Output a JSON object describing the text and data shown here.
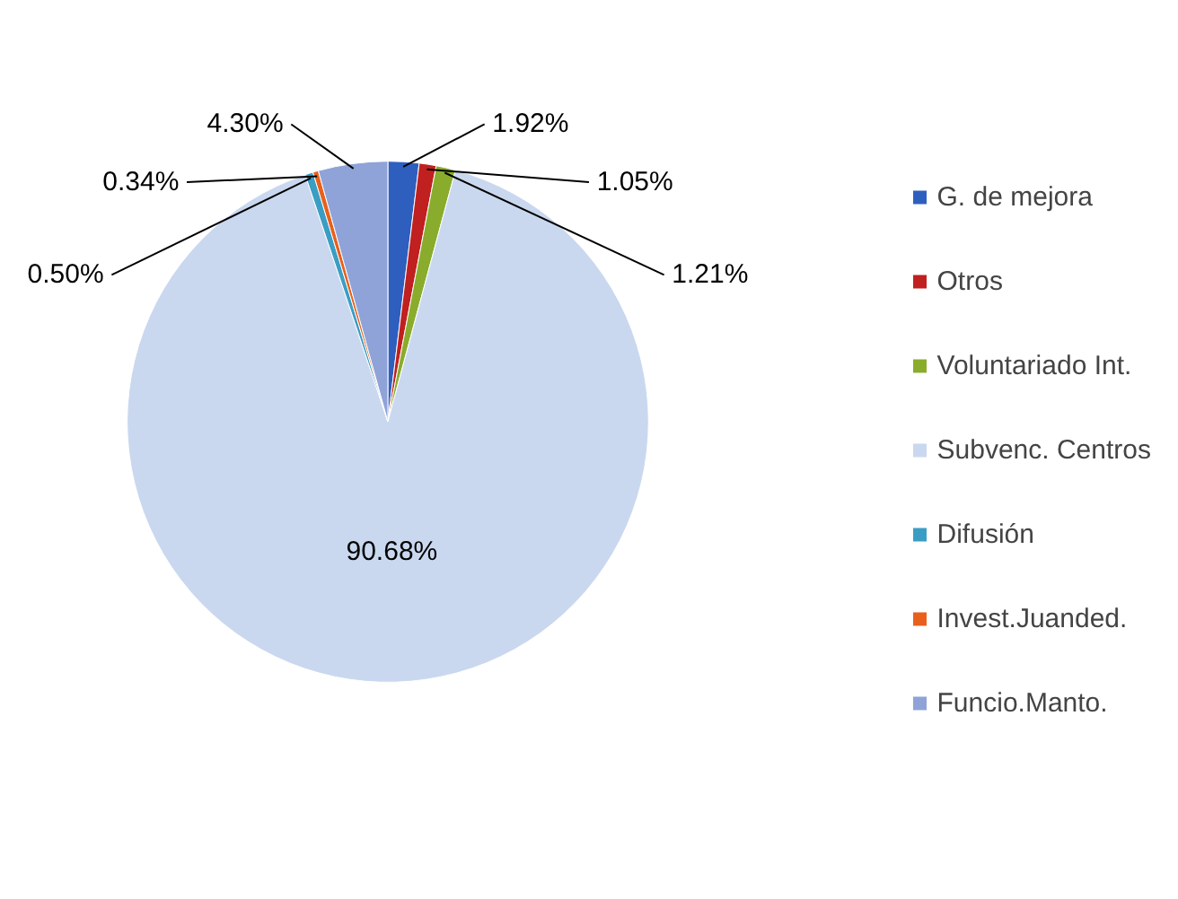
{
  "chart_data": {
    "type": "pie",
    "categories": [
      "G. de mejora",
      "Otros",
      "Voluntariado Int.",
      "Subvenc. Centros",
      "Difusión",
      "Invest.Juanded.",
      "Funcio.Manto."
    ],
    "values": [
      1.92,
      1.05,
      1.21,
      90.68,
      0.5,
      0.34,
      4.3
    ],
    "value_labels": [
      "1.92%",
      "1.05%",
      "1.21%",
      "90.68%",
      "0.50%",
      "0.34%",
      "4.30%"
    ],
    "colors": [
      "#2e5fbf",
      "#c0201f",
      "#8aac2c",
      "#c9d8ef",
      "#3a9ec4",
      "#e8601c",
      "#8fa3d8"
    ],
    "legend": "right"
  }
}
